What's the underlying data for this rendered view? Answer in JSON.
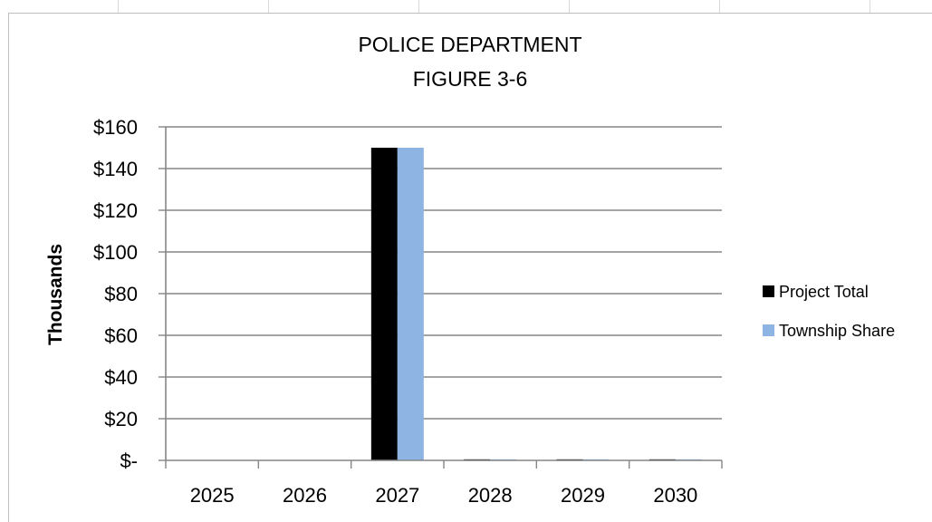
{
  "chart_data": {
    "type": "bar",
    "title": [
      "POLICE DEPARTMENT",
      "FIGURE 3-6"
    ],
    "categories": [
      "2025",
      "2026",
      "2027",
      "2028",
      "2029",
      "2030"
    ],
    "series": [
      {
        "name": "Project Total",
        "color": "#000000",
        "values": [
          0,
          0,
          150,
          0.5,
          0.5,
          0.5
        ]
      },
      {
        "name": "Township Share",
        "color": "#8eb4e3",
        "values": [
          0,
          0,
          150,
          0.5,
          0.5,
          0.5
        ]
      }
    ],
    "xlabel": "",
    "ylabel": "Thousands",
    "ylim": [
      0,
      160
    ],
    "yticks": [
      0,
      20,
      40,
      60,
      80,
      100,
      120,
      140,
      160
    ],
    "ytick_labels": [
      "$-",
      "$20",
      "$40",
      "$60",
      "$80",
      "$100",
      "$120",
      "$140",
      "$160"
    ],
    "grid": true,
    "legend_position": "right"
  }
}
